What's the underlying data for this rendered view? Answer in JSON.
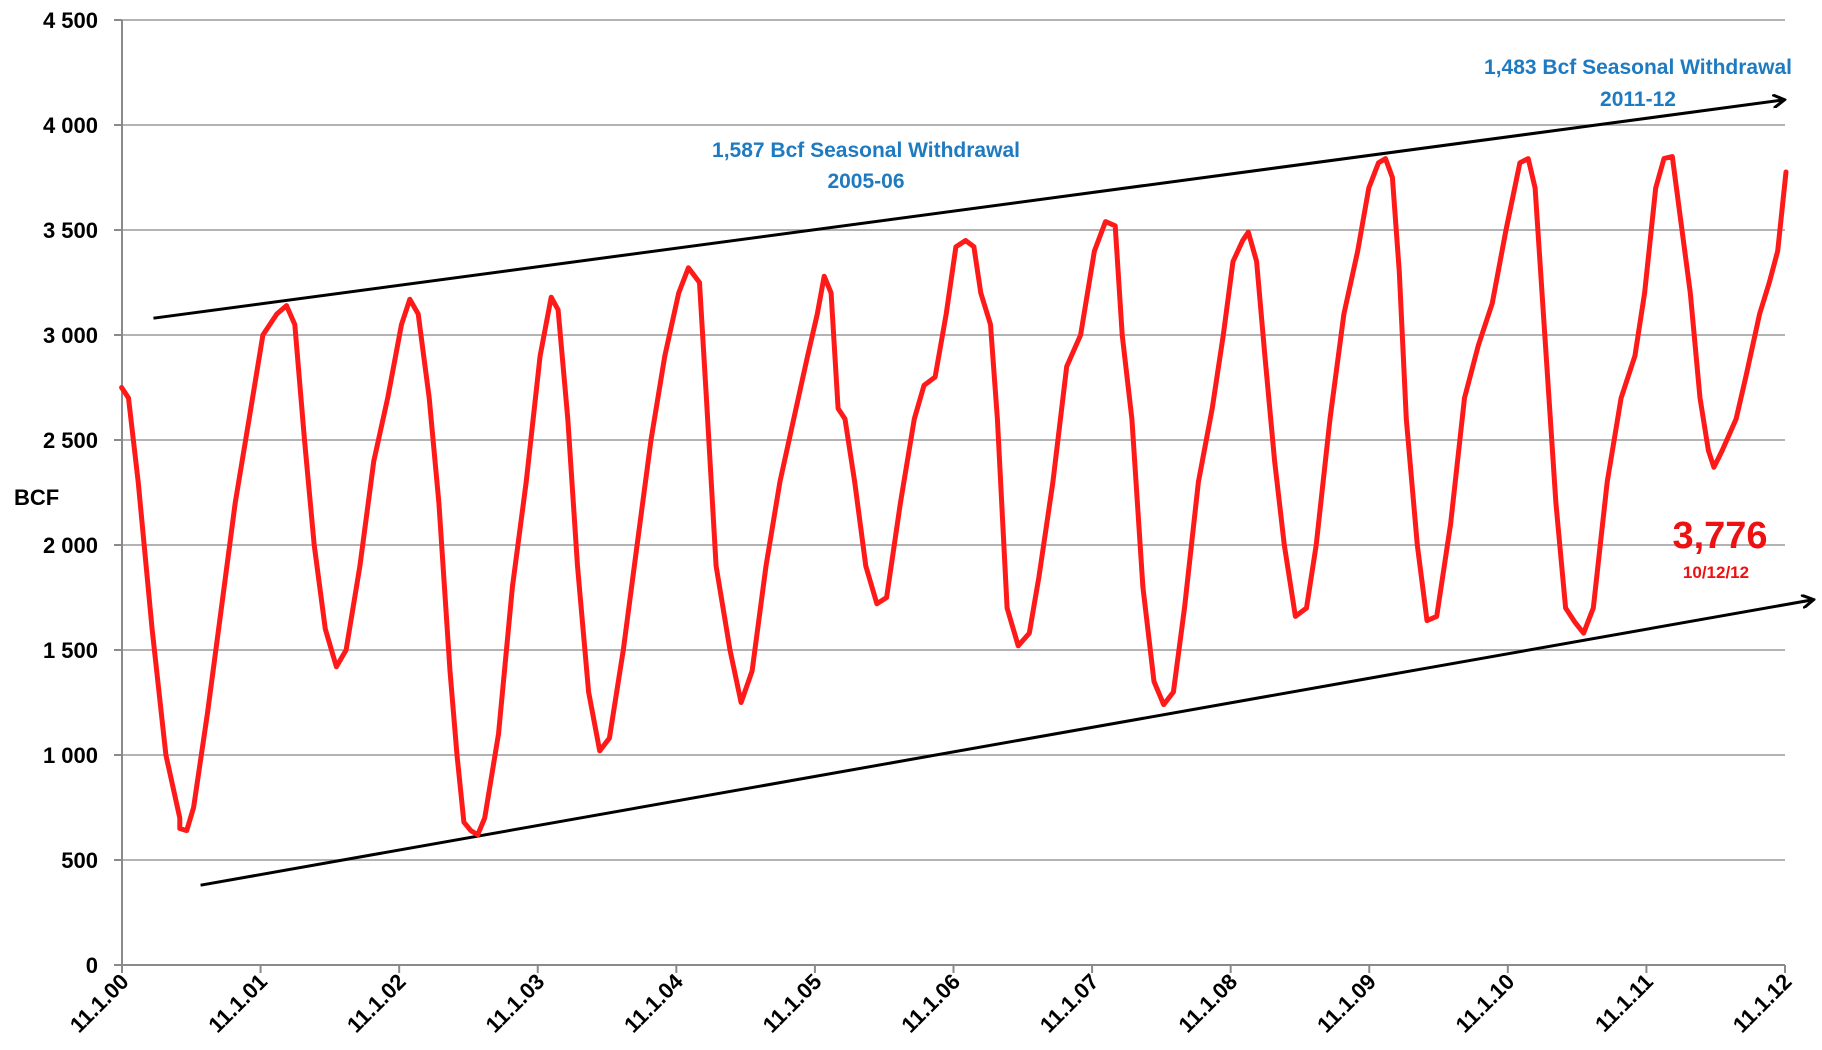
{
  "chart_data": {
    "type": "line",
    "title": "",
    "ylabel": "BCF",
    "xlabel": "",
    "ylim": [
      0,
      4500
    ],
    "yticks": [
      0,
      500,
      1000,
      1500,
      2000,
      2500,
      3000,
      3500,
      4000,
      4500
    ],
    "ytick_labels": [
      "0",
      "500",
      "1 000",
      "1 500",
      "2 000",
      "2 500",
      "3 000",
      "3 500",
      "4 000",
      "4 500"
    ],
    "xlim": [
      2000.833,
      2012.833
    ],
    "xticks": [
      2000.833,
      2001.833,
      2002.833,
      2003.833,
      2004.833,
      2005.833,
      2006.833,
      2007.833,
      2008.833,
      2009.833,
      2010.833,
      2011.833,
      2012.833
    ],
    "xtick_labels": [
      "11.1.00",
      "11.1.01",
      "11.1.02",
      "11.1.03",
      "11.1.04",
      "11.1.05",
      "11.1.06",
      "11.1.07",
      "11.1.08",
      "11.1.09",
      "11.1.10",
      "11.1.11",
      "11.1.12"
    ],
    "grid": true,
    "series": [
      {
        "color": "#ff1a1a",
        "points": [
          [
            2000.83,
            2750
          ],
          [
            2000.88,
            2700
          ],
          [
            2000.95,
            2300
          ],
          [
            2001.05,
            1600
          ],
          [
            2001.15,
            1000
          ],
          [
            2001.25,
            700
          ],
          [
            2001.25,
            650
          ],
          [
            2001.3,
            640
          ],
          [
            2001.35,
            750
          ],
          [
            2001.45,
            1200
          ],
          [
            2001.55,
            1700
          ],
          [
            2001.65,
            2200
          ],
          [
            2001.75,
            2600
          ],
          [
            2001.85,
            3000
          ],
          [
            2001.95,
            3100
          ],
          [
            2002.02,
            3140
          ],
          [
            2002.08,
            3050
          ],
          [
            2002.15,
            2500
          ],
          [
            2002.22,
            2000
          ],
          [
            2002.3,
            1600
          ],
          [
            2002.38,
            1420
          ],
          [
            2002.45,
            1500
          ],
          [
            2002.55,
            1900
          ],
          [
            2002.65,
            2400
          ],
          [
            2002.75,
            2700
          ],
          [
            2002.85,
            3050
          ],
          [
            2002.91,
            3170
          ],
          [
            2002.97,
            3100
          ],
          [
            2003.05,
            2700
          ],
          [
            2003.12,
            2200
          ],
          [
            2003.2,
            1400
          ],
          [
            2003.25,
            1000
          ],
          [
            2003.3,
            680
          ],
          [
            2003.35,
            640
          ],
          [
            2003.4,
            620
          ],
          [
            2003.45,
            700
          ],
          [
            2003.55,
            1100
          ],
          [
            2003.65,
            1800
          ],
          [
            2003.75,
            2300
          ],
          [
            2003.85,
            2900
          ],
          [
            2003.93,
            3180
          ],
          [
            2003.98,
            3120
          ],
          [
            2004.05,
            2600
          ],
          [
            2004.12,
            1900
          ],
          [
            2004.2,
            1300
          ],
          [
            2004.28,
            1020
          ],
          [
            2004.35,
            1080
          ],
          [
            2004.45,
            1500
          ],
          [
            2004.55,
            2000
          ],
          [
            2004.65,
            2500
          ],
          [
            2004.75,
            2900
          ],
          [
            2004.85,
            3200
          ],
          [
            2004.92,
            3320
          ],
          [
            2005.0,
            3250
          ],
          [
            2005.05,
            2700
          ],
          [
            2005.12,
            1900
          ],
          [
            2005.22,
            1500
          ],
          [
            2005.3,
            1250
          ],
          [
            2005.38,
            1400
          ],
          [
            2005.48,
            1900
          ],
          [
            2005.58,
            2300
          ],
          [
            2005.68,
            2600
          ],
          [
            2005.78,
            2900
          ],
          [
            2005.85,
            3100
          ],
          [
            2005.9,
            3280
          ],
          [
            2005.95,
            3200
          ],
          [
            2006.0,
            2650
          ],
          [
            2006.05,
            2600
          ],
          [
            2006.12,
            2300
          ],
          [
            2006.2,
            1900
          ],
          [
            2006.28,
            1720
          ],
          [
            2006.35,
            1750
          ],
          [
            2006.45,
            2200
          ],
          [
            2006.55,
            2600
          ],
          [
            2006.62,
            2760
          ],
          [
            2006.7,
            2800
          ],
          [
            2006.78,
            3100
          ],
          [
            2006.85,
            3420
          ],
          [
            2006.92,
            3450
          ],
          [
            2006.98,
            3420
          ],
          [
            2007.03,
            3200
          ],
          [
            2007.1,
            3050
          ],
          [
            2007.15,
            2600
          ],
          [
            2007.22,
            1700
          ],
          [
            2007.3,
            1520
          ],
          [
            2007.38,
            1580
          ],
          [
            2007.45,
            1850
          ],
          [
            2007.55,
            2300
          ],
          [
            2007.65,
            2850
          ],
          [
            2007.75,
            3000
          ],
          [
            2007.85,
            3400
          ],
          [
            2007.93,
            3540
          ],
          [
            2008.0,
            3520
          ],
          [
            2008.05,
            3000
          ],
          [
            2008.12,
            2600
          ],
          [
            2008.2,
            1800
          ],
          [
            2008.28,
            1350
          ],
          [
            2008.35,
            1240
          ],
          [
            2008.42,
            1300
          ],
          [
            2008.5,
            1700
          ],
          [
            2008.6,
            2300
          ],
          [
            2008.7,
            2650
          ],
          [
            2008.78,
            3000
          ],
          [
            2008.85,
            3350
          ],
          [
            2008.92,
            3450
          ],
          [
            2008.96,
            3490
          ],
          [
            2009.02,
            3350
          ],
          [
            2009.08,
            2900
          ],
          [
            2009.15,
            2400
          ],
          [
            2009.22,
            2000
          ],
          [
            2009.3,
            1660
          ],
          [
            2009.38,
            1700
          ],
          [
            2009.45,
            2000
          ],
          [
            2009.55,
            2600
          ],
          [
            2009.65,
            3100
          ],
          [
            2009.75,
            3400
          ],
          [
            2009.83,
            3700
          ],
          [
            2009.9,
            3820
          ],
          [
            2009.95,
            3840
          ],
          [
            2010.0,
            3750
          ],
          [
            2010.05,
            3300
          ],
          [
            2010.1,
            2600
          ],
          [
            2010.18,
            2000
          ],
          [
            2010.25,
            1640
          ],
          [
            2010.32,
            1660
          ],
          [
            2010.42,
            2100
          ],
          [
            2010.52,
            2700
          ],
          [
            2010.62,
            2950
          ],
          [
            2010.72,
            3150
          ],
          [
            2010.82,
            3500
          ],
          [
            2010.92,
            3820
          ],
          [
            2010.98,
            3840
          ],
          [
            2011.03,
            3700
          ],
          [
            2011.1,
            3000
          ],
          [
            2011.18,
            2200
          ],
          [
            2011.25,
            1700
          ],
          [
            2011.32,
            1630
          ],
          [
            2011.38,
            1580
          ],
          [
            2011.45,
            1700
          ],
          [
            2011.55,
            2300
          ],
          [
            2011.65,
            2700
          ],
          [
            2011.75,
            2900
          ],
          [
            2011.82,
            3200
          ],
          [
            2011.9,
            3700
          ],
          [
            2011.96,
            3840
          ],
          [
            2012.02,
            3850
          ],
          [
            2012.08,
            3550
          ],
          [
            2012.15,
            3200
          ],
          [
            2012.22,
            2700
          ],
          [
            2012.28,
            2450
          ],
          [
            2012.32,
            2370
          ],
          [
            2012.38,
            2450
          ],
          [
            2012.48,
            2600
          ],
          [
            2012.55,
            2800
          ],
          [
            2012.65,
            3100
          ],
          [
            2012.72,
            3250
          ],
          [
            2012.78,
            3400
          ],
          [
            2012.84,
            3776
          ]
        ]
      }
    ],
    "trendlines": [
      {
        "color": "#000000",
        "from": [
          2001.06,
          3080
        ],
        "to": [
          2012.83,
          4120
        ]
      },
      {
        "color": "#000000",
        "from": [
          2001.4,
          380
        ],
        "to": [
          2013.04,
          1740
        ]
      }
    ],
    "annotations": {
      "withdrawal_2005": {
        "line1": "1,587 Bcf Seasonal Withdrawal",
        "line2": "2005-06"
      },
      "withdrawal_2011": {
        "line1": "1,483 Bcf Seasonal Withdrawal",
        "line2": "2011-12"
      },
      "latest_value": "3,776",
      "latest_date": "10/12/12"
    },
    "colors": {
      "series": "#ff1a1a",
      "annotation_blue": "#1f7bc1",
      "annotation_red": "#ee1111",
      "grid": "#9a9a9a"
    }
  }
}
